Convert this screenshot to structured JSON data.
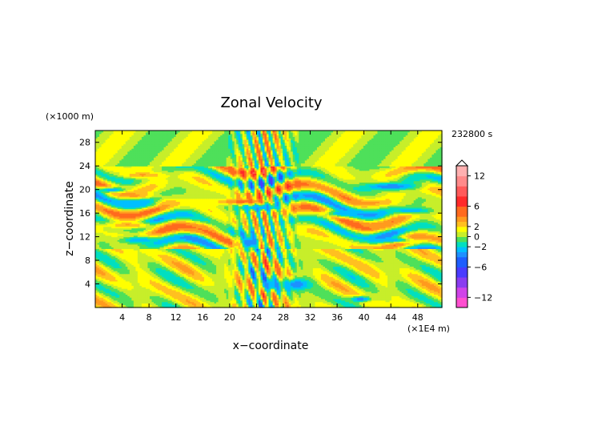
{
  "chart_data": {
    "type": "heatmap",
    "title": "Zonal Velocity",
    "xlabel": "x−coordinate",
    "ylabel": "z−coordinate",
    "x_unit": "(×1E4 m)",
    "y_unit": "(×1000 m)",
    "time_label": "232800 s",
    "xlim": [
      0,
      51.6
    ],
    "ylim": [
      0,
      30
    ],
    "xticks": [
      4,
      8,
      12,
      16,
      20,
      24,
      28,
      32,
      36,
      40,
      44,
      48
    ],
    "yticks": [
      4,
      8,
      12,
      16,
      20,
      24,
      28
    ],
    "colorbar": {
      "range": [
        -14,
        14
      ],
      "tick_values": [
        12,
        6,
        2,
        0,
        -2,
        -6,
        -12
      ],
      "tick_labels": [
        "12",
        "6",
        "2",
        "0",
        "−2",
        "−6",
        "−12"
      ],
      "levels": [
        {
          "from": -14,
          "to": -12,
          "color": "#ff4fd0"
        },
        {
          "from": -12,
          "to": -10,
          "color": "#d043e8"
        },
        {
          "from": -10,
          "to": -8,
          "color": "#8a3cf0"
        },
        {
          "from": -8,
          "to": -6,
          "color": "#4a3cff"
        },
        {
          "from": -6,
          "to": -4,
          "color": "#1e5eff"
        },
        {
          "from": -4,
          "to": -3,
          "color": "#1e90ff"
        },
        {
          "from": -3,
          "to": -2,
          "color": "#00bfff"
        },
        {
          "from": -2,
          "to": -1,
          "color": "#00dfc0"
        },
        {
          "from": -1,
          "to": 0,
          "color": "#4ee05a"
        },
        {
          "from": 0,
          "to": 1,
          "color": "#c7ee2a"
        },
        {
          "from": 1,
          "to": 2,
          "color": "#ffff00"
        },
        {
          "from": 2,
          "to": 3,
          "color": "#ffc020"
        },
        {
          "from": 3,
          "to": 4,
          "color": "#ff9a1e"
        },
        {
          "from": 4,
          "to": 6,
          "color": "#ff6a1e"
        },
        {
          "from": 6,
          "to": 8,
          "color": "#ff2a2a"
        },
        {
          "from": 8,
          "to": 10,
          "color": "#ff5a5a"
        },
        {
          "from": 10,
          "to": 12,
          "color": "#ff8a8a"
        },
        {
          "from": 12,
          "to": 14,
          "color": "#ffb0b0"
        }
      ]
    },
    "features": [
      {
        "x": 44,
        "z": 20.6,
        "rx": 4,
        "rz": 0.6,
        "value": -4
      },
      {
        "x": 2.5,
        "z": 20,
        "rx": 2.5,
        "rz": 0.5,
        "value": -3
      },
      {
        "x": 6,
        "z": 17.5,
        "rx": 3,
        "rz": 0.5,
        "value": -2.5
      },
      {
        "x": 6,
        "z": 19,
        "rx": 3,
        "rz": 0.5,
        "value": 3.2
      },
      {
        "x": 5,
        "z": 14,
        "rx": 4,
        "rz": 0.6,
        "value": 3.2
      },
      {
        "x": 6.5,
        "z": 11.5,
        "rx": 3,
        "rz": 0.7,
        "value": -3
      },
      {
        "x": 15,
        "z": 13.5,
        "rx": 2.5,
        "rz": 0.7,
        "value": 4
      },
      {
        "x": 22,
        "z": 18,
        "rx": 4,
        "rz": 0.5,
        "value": 4.5
      },
      {
        "x": 24.5,
        "z": 17,
        "rx": 3,
        "rz": 0.5,
        "value": -3
      },
      {
        "x": 23,
        "z": 11,
        "rx": 1.5,
        "rz": 1.2,
        "value": -4
      },
      {
        "x": 26,
        "z": 4,
        "rx": 1.5,
        "rz": 1,
        "value": -3
      },
      {
        "x": 30,
        "z": 4,
        "rx": 2,
        "rz": 1,
        "value": -4
      },
      {
        "x": 39.5,
        "z": 1.5,
        "rx": 1.5,
        "rz": 0.5,
        "value": -4
      },
      {
        "x": 37,
        "z": 16,
        "rx": 3,
        "rz": 0.6,
        "value": -3
      },
      {
        "x": 47,
        "z": 16.5,
        "rx": 3,
        "rz": 0.5,
        "value": -3
      },
      {
        "x": 41,
        "z": 17.8,
        "rx": 3,
        "rz": 0.4,
        "value": 3.2
      },
      {
        "x": 42,
        "z": 14,
        "rx": 3,
        "rz": 0.5,
        "value": 3.2
      },
      {
        "x": 44.5,
        "z": 11.5,
        "rx": 3,
        "rz": 0.5,
        "value": -2.5
      },
      {
        "x": 7,
        "z": 22.5,
        "rx": 3,
        "rz": 0.5,
        "value": 3.2
      }
    ]
  }
}
